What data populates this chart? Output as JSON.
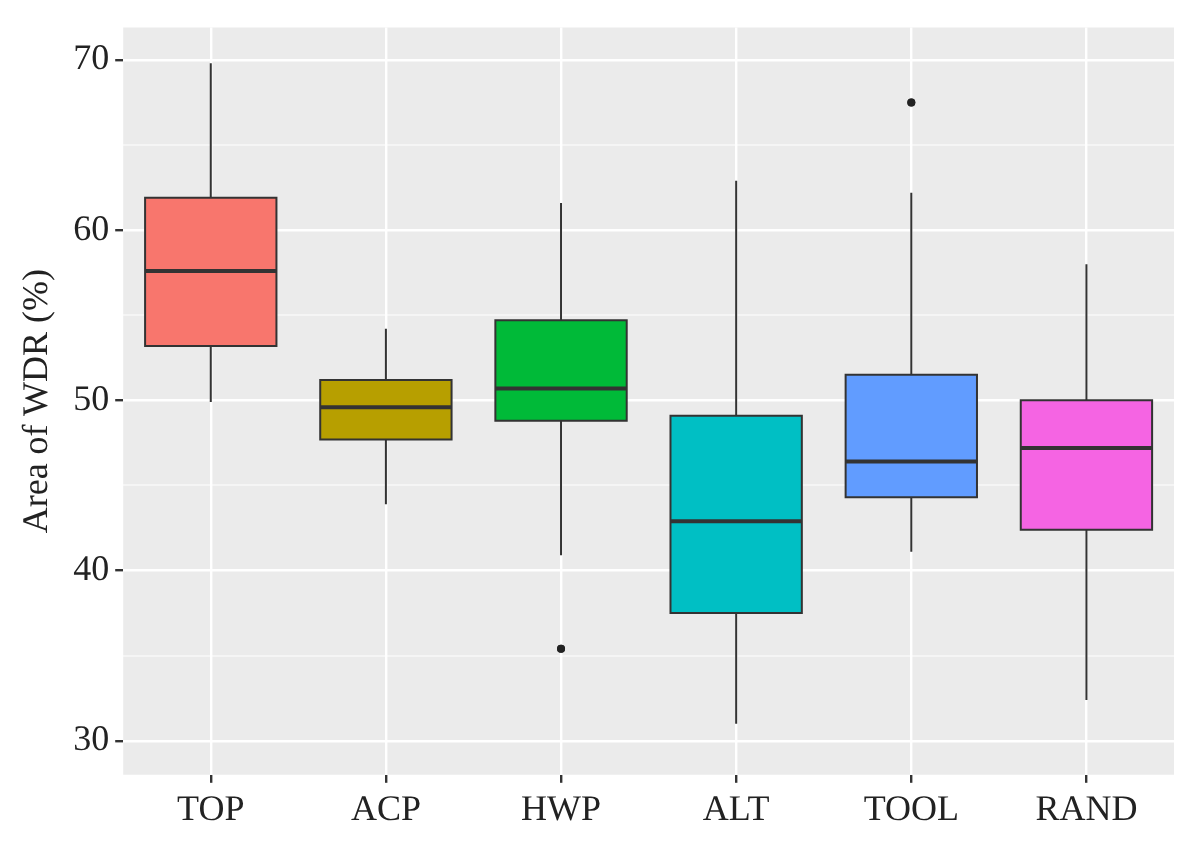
{
  "chart_data": {
    "type": "box",
    "ylabel": "Area of WDR (%)",
    "categories": [
      "TOP",
      "ACP",
      "HWP",
      "ALT",
      "TOOL",
      "RAND"
    ],
    "colors": [
      "#f8766d",
      "#b79f00",
      "#00ba38",
      "#00bfc4",
      "#619cff",
      "#f564e3"
    ],
    "boxes": [
      {
        "low": 49.9,
        "q1": 53.2,
        "median": 57.6,
        "q3": 61.9,
        "high": 69.8
      },
      {
        "low": 43.9,
        "q1": 47.7,
        "median": 49.6,
        "q3": 51.2,
        "high": 54.2
      },
      {
        "low": 40.9,
        "q1": 48.8,
        "median": 50.7,
        "q3": 54.7,
        "high": 61.6,
        "outliers": [
          35.4
        ]
      },
      {
        "low": 31.0,
        "q1": 37.5,
        "median": 42.9,
        "q3": 49.1,
        "high": 62.9
      },
      {
        "low": 41.1,
        "q1": 44.3,
        "median": 46.4,
        "q3": 51.5,
        "high": 62.2,
        "outliers": [
          67.5
        ]
      },
      {
        "low": 32.4,
        "q1": 42.4,
        "median": 47.2,
        "q3": 50.0,
        "high": 58.0
      }
    ],
    "ylim": [
      28.0,
      71.9
    ],
    "yticks": [
      30,
      {
        "value": 35,
        "label": null
      },
      40,
      {
        "value": 45,
        "label": null
      },
      50,
      {
        "value": 55,
        "label": null
      },
      60,
      {
        "value": 65,
        "label": null
      },
      70
    ],
    "grid": true,
    "legend": false
  }
}
